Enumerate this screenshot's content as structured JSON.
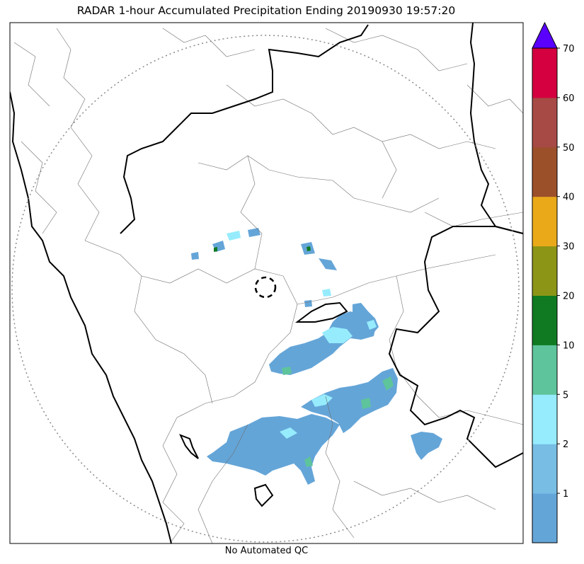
{
  "title": "RADAR 1-hour Accumulated Precipitation Ending 20190930 19:57:20",
  "footer": "No Automated QC",
  "colorbar": {
    "bins": [
      {
        "color": "#64a5d8"
      },
      {
        "color": "#78bde4"
      },
      {
        "color": "#96ecfd"
      },
      {
        "color": "#5ec49b"
      },
      {
        "color": "#0f7a21"
      },
      {
        "color": "#8c9516"
      },
      {
        "color": "#e9a919"
      },
      {
        "color": "#9c502a"
      },
      {
        "color": "#a74a46"
      },
      {
        "color": "#d4003f"
      }
    ],
    "extend_color": "#5a00ff",
    "tick_labels": [
      "1",
      "2",
      "5",
      "10",
      "20",
      "30",
      "40",
      "50",
      "60",
      "70"
    ]
  }
}
